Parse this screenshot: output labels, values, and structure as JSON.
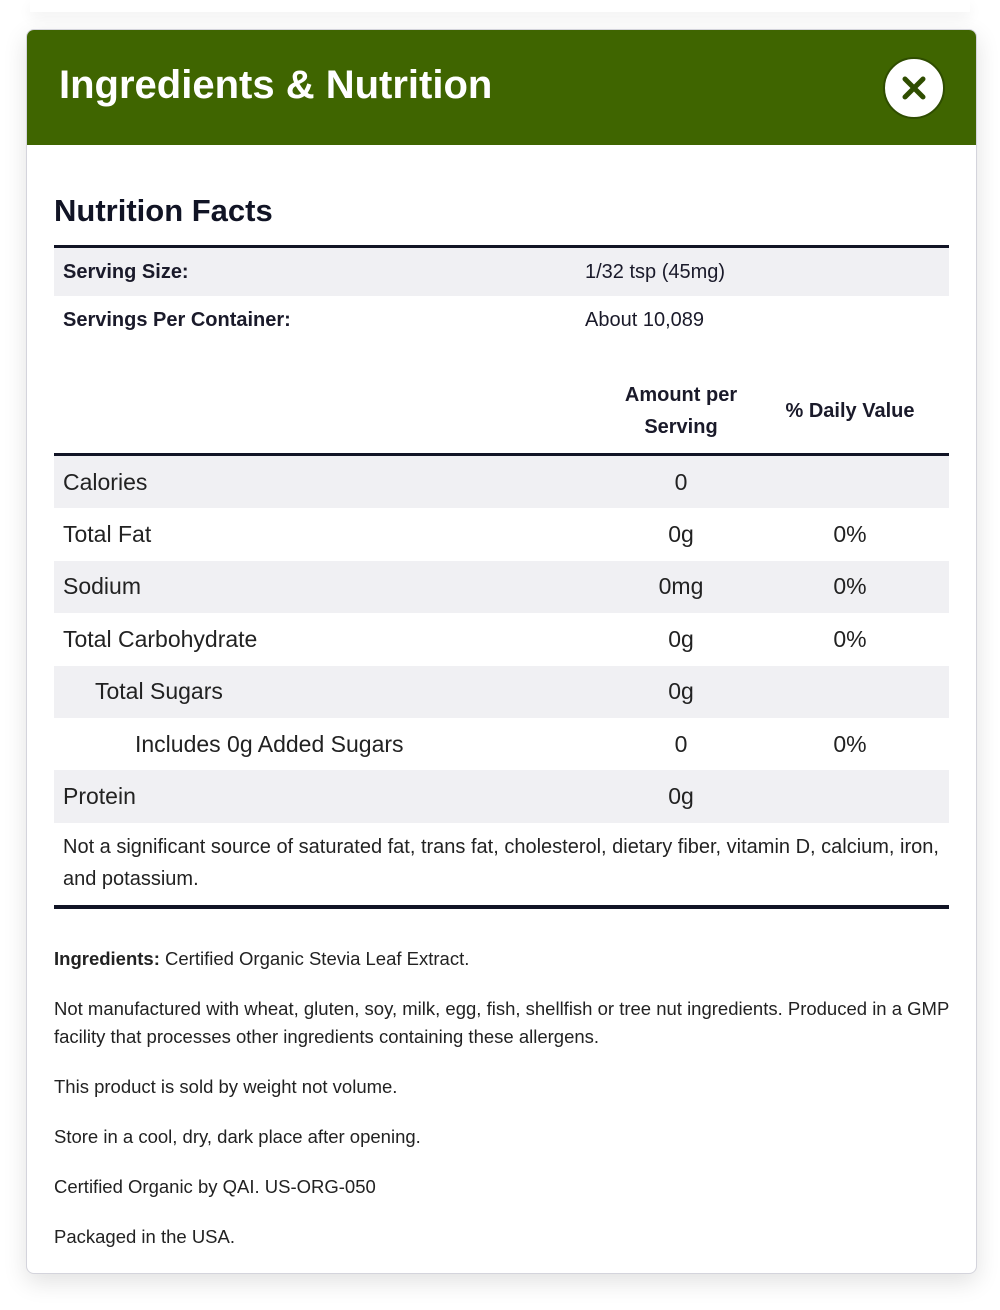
{
  "modal": {
    "title": "Ingredients & Nutrition",
    "close_icon": "close-x-icon",
    "header_color": "#3f6500"
  },
  "nutrition": {
    "heading": "Nutrition Facts",
    "serving_size_label": "Serving Size:",
    "serving_size": "1/32 tsp (45mg)",
    "servings_label": "Servings Per Container:",
    "servings": "About 10,089",
    "col_amount": "Amount per Serving",
    "col_dv": "% Daily Value",
    "rows": [
      {
        "name": "Calories",
        "amount": "0",
        "dv": ""
      },
      {
        "name": "Total Fat",
        "amount": "0g",
        "dv": "0%"
      },
      {
        "name": "Sodium",
        "amount": "0mg",
        "dv": "0%"
      },
      {
        "name": "Total Carbohydrate",
        "amount": "0g",
        "dv": "0%"
      },
      {
        "name": "Total Sugars",
        "amount": "0g",
        "dv": ""
      },
      {
        "name": "Includes 0g Added Sugars",
        "amount": "0",
        "dv": "0%"
      },
      {
        "name": "Protein",
        "amount": "0g",
        "dv": ""
      }
    ],
    "footnote": "Not a significant source of saturated fat, trans fat, cholesterol, dietary fiber, vitamin D, calcium, iron, and potassium."
  },
  "info": {
    "ingredients_label": "Ingredients:",
    "ingredients": "Certified Organic Stevia Leaf Extract.",
    "paragraphs": [
      "Not manufactured with wheat, gluten, soy, milk, egg, fish, shellfish or tree nut ingredients. Produced in a GMP facility that processes other ingredients containing these allergens.",
      "This product is sold by weight not volume.",
      "Store in a cool, dry, dark place after opening.",
      "Certified Organic by QAI. US-ORG-050",
      "Packaged in the USA."
    ]
  }
}
